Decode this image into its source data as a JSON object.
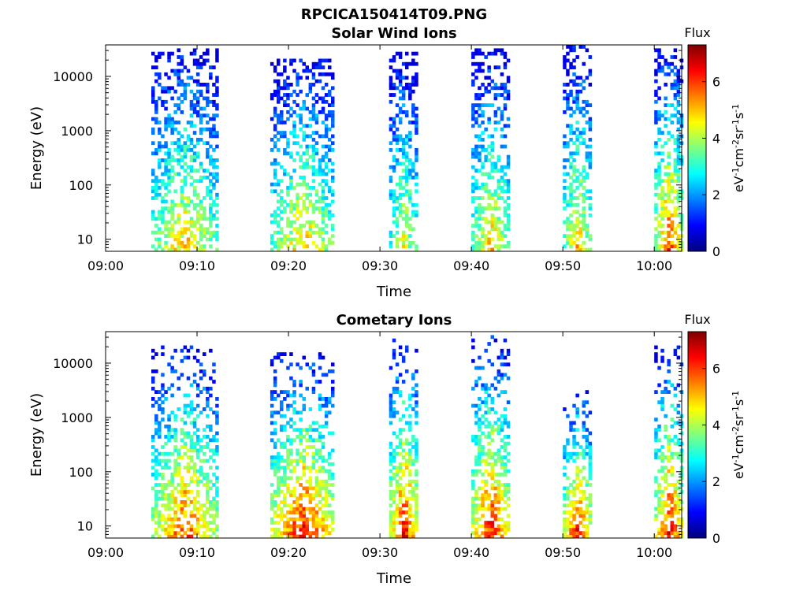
{
  "figure_title": "RPCICA150414T09.PNG",
  "colorbar": {
    "colormap": "jet",
    "range": [
      0,
      7.3
    ],
    "ticks": [
      "0",
      "2",
      "4",
      "6"
    ],
    "tick_values": [
      0,
      2,
      4,
      6
    ],
    "header": "Flux",
    "unit_parts": [
      "eV",
      "-1",
      "cm",
      "-2",
      "sr",
      "-1",
      "s",
      "-1"
    ]
  },
  "chart_data": [
    {
      "type": "heatmap",
      "title": "Solar Wind Ions",
      "xlabel": "Time",
      "ylabel": "Energy (eV)",
      "x_scale": "time",
      "y_scale": "log",
      "x_range": [
        "09:00",
        "10:03"
      ],
      "y_range": [
        6,
        38000
      ],
      "x_ticks": [
        "09:00",
        "09:10",
        "09:20",
        "09:30",
        "09:40",
        "09:50",
        "10:00"
      ],
      "x_tick_minutes": [
        0,
        10,
        20,
        30,
        40,
        50,
        60
      ],
      "y_ticks": [
        "10",
        "100",
        "1000",
        "10000"
      ],
      "y_tick_values": [
        10,
        100,
        1000,
        10000
      ],
      "grid": false,
      "bursts": [
        {
          "start": "09:05",
          "end": "09:12",
          "top_energy": 30000,
          "low_energy_peak_flux": 5.0
        },
        {
          "start": "09:18",
          "end": "09:25",
          "top_energy": 20000,
          "low_energy_peak_flux": 5.0
        },
        {
          "start": "09:31",
          "end": "09:34",
          "top_energy": 25000,
          "low_energy_peak_flux": 4.5
        },
        {
          "start": "09:40",
          "end": "09:44",
          "top_energy": 30000,
          "low_energy_peak_flux": 5.0
        },
        {
          "start": "09:50",
          "end": "09:53",
          "top_energy": 35000,
          "low_energy_peak_flux": 5.0
        },
        {
          "start": "10:00",
          "end": "10:03",
          "top_energy": 30000,
          "low_energy_peak_flux": 6.0
        }
      ]
    },
    {
      "type": "heatmap",
      "title": "Cometary Ions",
      "xlabel": "Time",
      "ylabel": "Energy (eV)",
      "x_scale": "time",
      "y_scale": "log",
      "x_range": [
        "09:00",
        "10:03"
      ],
      "y_range": [
        6,
        38000
      ],
      "x_ticks": [
        "09:00",
        "09:10",
        "09:20",
        "09:30",
        "09:40",
        "09:50",
        "10:00"
      ],
      "x_tick_minutes": [
        0,
        10,
        20,
        30,
        40,
        50,
        60
      ],
      "y_ticks": [
        "10",
        "100",
        "1000",
        "10000"
      ],
      "y_tick_values": [
        10,
        100,
        1000,
        10000
      ],
      "grid": false,
      "bursts": [
        {
          "start": "09:05",
          "end": "09:12",
          "top_energy": 20000,
          "low_energy_peak_flux": 6.0
        },
        {
          "start": "09:18",
          "end": "09:25",
          "top_energy": 15000,
          "low_energy_peak_flux": 6.5
        },
        {
          "start": "09:31",
          "end": "09:34",
          "top_energy": 25000,
          "low_energy_peak_flux": 6.5
        },
        {
          "start": "09:40",
          "end": "09:44",
          "top_energy": 30000,
          "low_energy_peak_flux": 6.5
        },
        {
          "start": "09:50",
          "end": "09:53",
          "top_energy": 3000,
          "low_energy_peak_flux": 6.5
        },
        {
          "start": "10:00",
          "end": "10:03",
          "top_energy": 20000,
          "low_energy_peak_flux": 6.5
        }
      ]
    }
  ]
}
